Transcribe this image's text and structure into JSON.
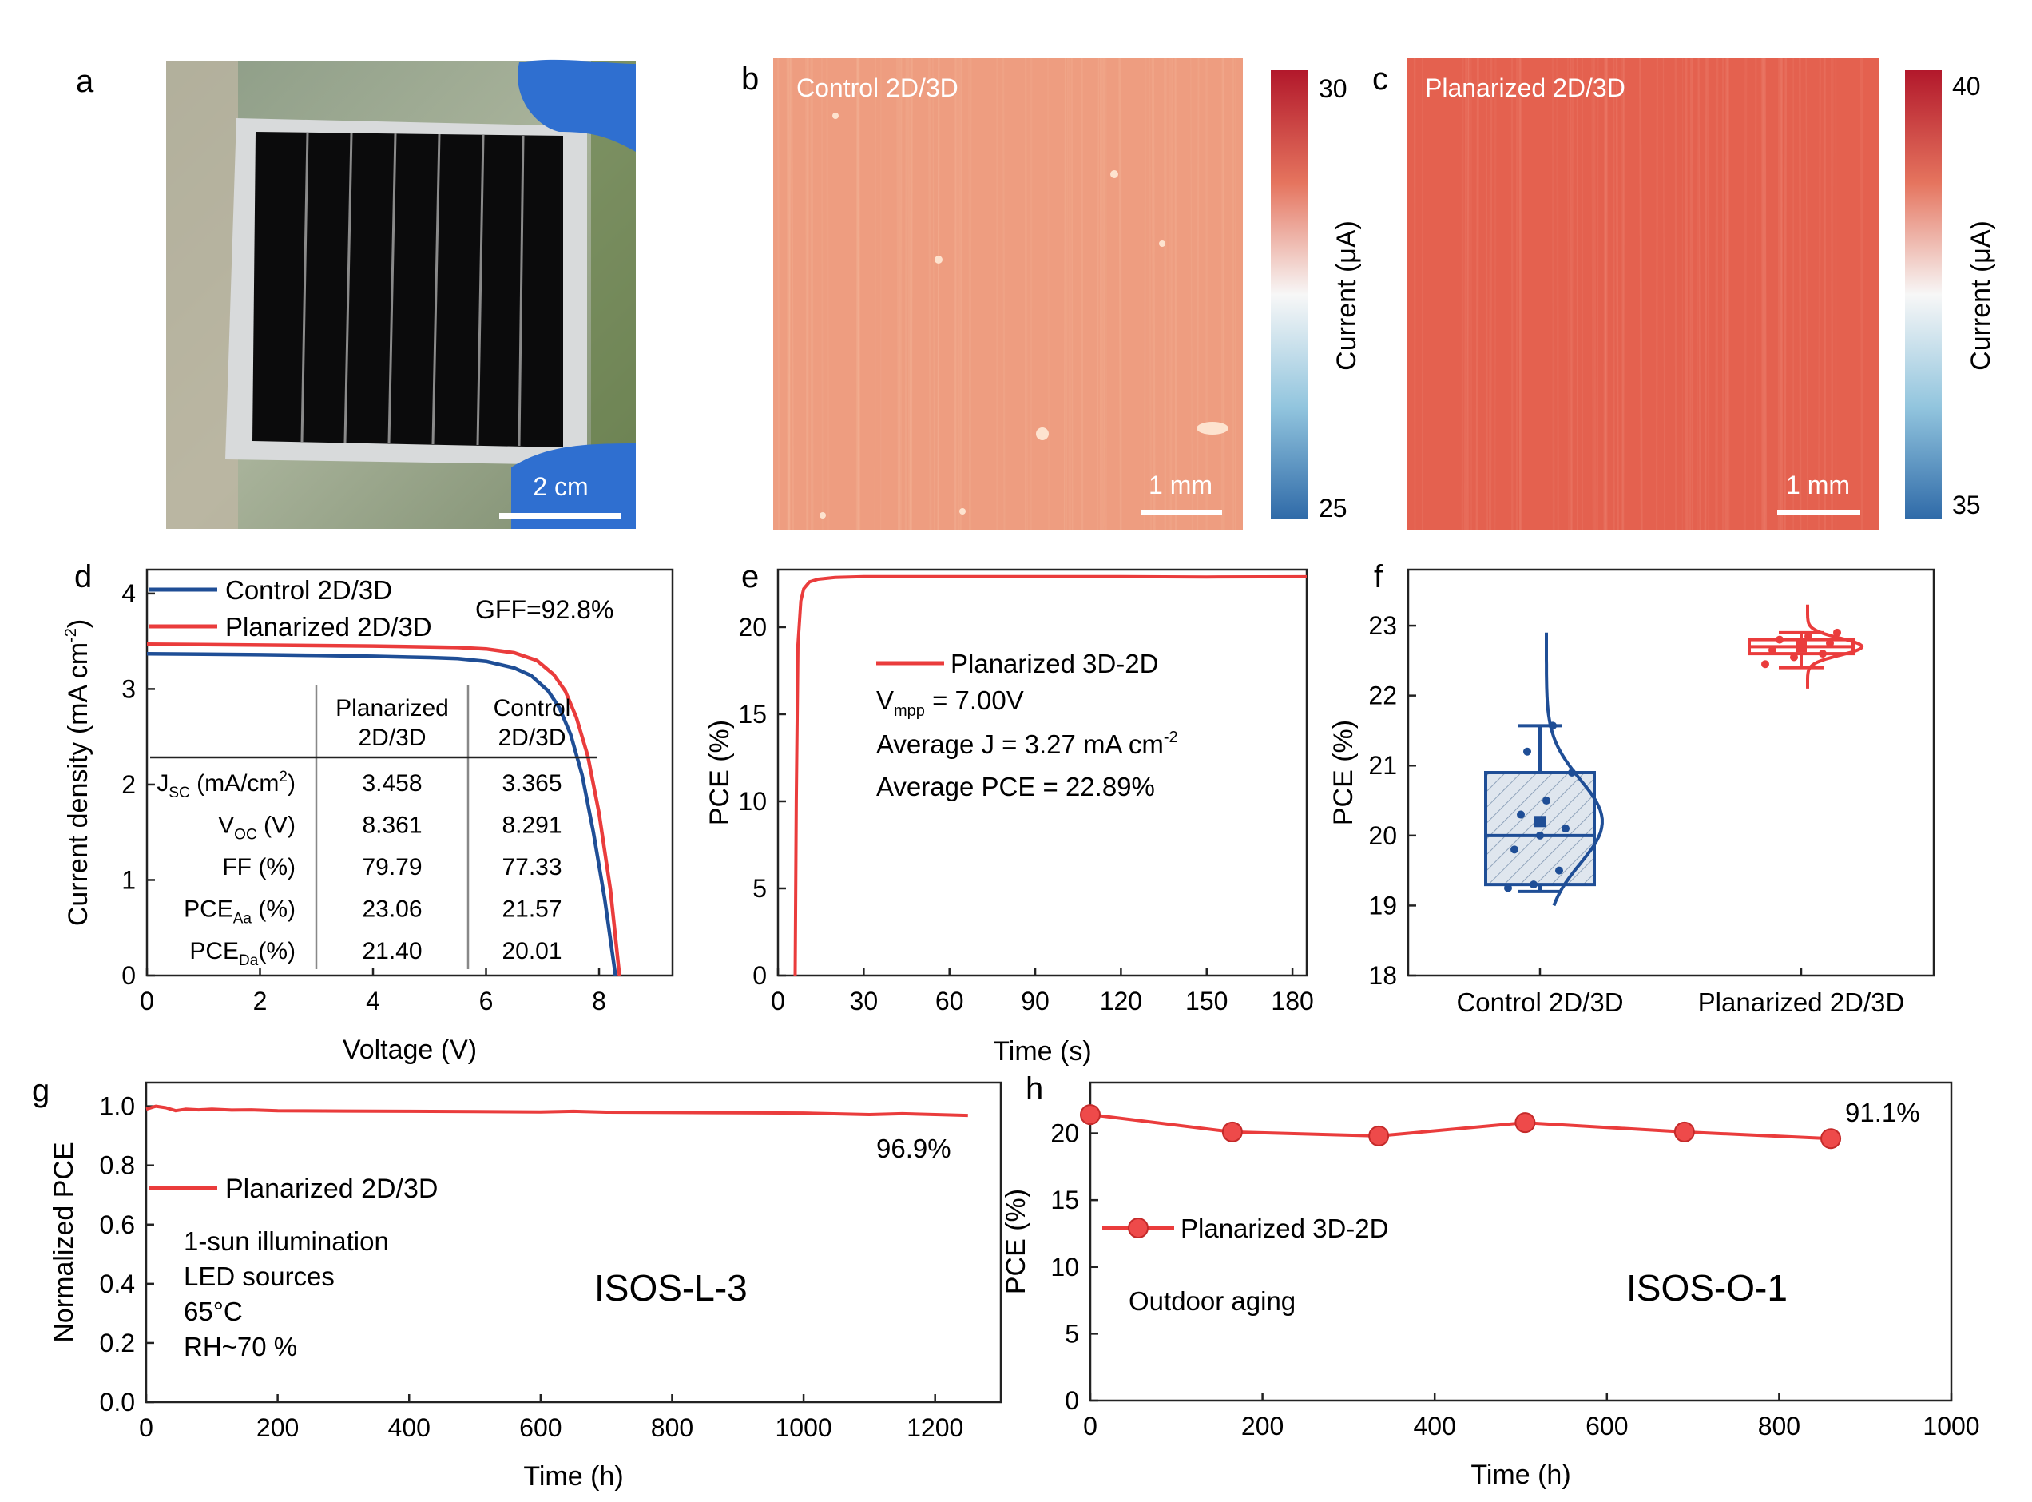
{
  "panels": {
    "a": {
      "letter": "a",
      "scale_bar": "2 cm"
    },
    "b": {
      "letter": "b",
      "title": "Control 2D/3D",
      "scale_bar": "1 mm",
      "colorbar": {
        "max": "30",
        "min": "25",
        "label": "Current (μA)"
      },
      "fill": "#ee9d80"
    },
    "c": {
      "letter": "c",
      "title": "Planarized 2D/3D",
      "scale_bar": "1 mm",
      "colorbar": {
        "max": "40",
        "min": "35",
        "label": "Current (μA)"
      },
      "fill": "#e4614f"
    },
    "d": {
      "letter": "d",
      "legend": [
        "Control 2D/3D",
        "Planarized 2D/3D"
      ],
      "gff": "GFF=92.8%",
      "table": {
        "headers": [
          [
            "Planarized",
            "2D/3D"
          ],
          [
            "Control",
            "2D/3D"
          ]
        ],
        "rows": [
          {
            "label": "J",
            "sub": "SC",
            "unit": " (mA/cm",
            "sup": "2",
            "tail": ")",
            "values": [
              "3.458",
              "3.365"
            ]
          },
          {
            "label": "V",
            "sub": "OC",
            "unit": " (V)",
            "sup": "",
            "tail": "",
            "values": [
              "8.361",
              "8.291"
            ]
          },
          {
            "label": "FF (%)",
            "sub": "",
            "unit": "",
            "sup": "",
            "tail": "",
            "values": [
              "79.79",
              "77.33"
            ]
          },
          {
            "label": "PCE",
            "sub": "Aa",
            "unit": " (%)",
            "sup": "",
            "tail": "",
            "values": [
              "23.06",
              "21.57"
            ]
          },
          {
            "label": "PCE",
            "sub": "Da",
            "unit": "(%)",
            "sup": "",
            "tail": "",
            "values": [
              "21.40",
              "20.01"
            ]
          }
        ]
      }
    },
    "e": {
      "letter": "e",
      "legend": "Planarized 3D-2D",
      "lines": [
        {
          "main": "V",
          "sub": "mpp",
          "rest": " = 7.00V",
          "sup": ""
        },
        {
          "main": "Average ",
          "sub": "",
          "rest": "J = 3.27 mA cm",
          "sup": "-2"
        },
        {
          "main": "Average PCE = 22.89%",
          "sub": "",
          "rest": "",
          "sup": ""
        }
      ]
    },
    "f": {
      "letter": "f"
    },
    "g": {
      "letter": "g",
      "legend": "Planarized 2D/3D",
      "notes": [
        "1-sun illumination",
        "LED sources",
        "65°C",
        "RH~70 %"
      ],
      "protocol": "ISOS-L-3",
      "end_label": "96.9%"
    },
    "h": {
      "letter": "h",
      "legend": "Planarized 3D-2D",
      "notes": [
        "Outdoor aging"
      ],
      "protocol": "ISOS-O-1",
      "end_label": "91.1%"
    }
  },
  "chart_data": [
    {
      "panel": "d",
      "type": "line",
      "xlabel": "Voltage (V)",
      "ylabel": "Current density (mA cm-2)",
      "xlim": [
        0,
        9.3
      ],
      "ylim": [
        0,
        4.25
      ],
      "xticks": [
        0,
        2,
        4,
        6,
        8
      ],
      "yticks": [
        0,
        1,
        2,
        3,
        4
      ],
      "series": [
        {
          "name": "Control 2D/3D",
          "color": "#1f4e96",
          "x": [
            0,
            1,
            2,
            3,
            4,
            5,
            5.5,
            6,
            6.5,
            6.8,
            7.1,
            7.3,
            7.5,
            7.7,
            7.9,
            8.1,
            8.291
          ],
          "y": [
            3.37,
            3.365,
            3.36,
            3.352,
            3.343,
            3.33,
            3.32,
            3.29,
            3.22,
            3.14,
            2.98,
            2.8,
            2.52,
            2.1,
            1.5,
            0.8,
            0
          ]
        },
        {
          "name": "Planarized 2D/3D",
          "color": "#ea3c3c",
          "x": [
            0,
            1,
            2,
            3,
            4,
            5,
            5.5,
            6,
            6.5,
            6.9,
            7.2,
            7.4,
            7.6,
            7.8,
            8.0,
            8.2,
            8.361
          ],
          "y": [
            3.47,
            3.465,
            3.46,
            3.455,
            3.45,
            3.44,
            3.435,
            3.42,
            3.38,
            3.3,
            3.15,
            2.98,
            2.7,
            2.3,
            1.7,
            0.9,
            0
          ]
        }
      ]
    },
    {
      "panel": "e",
      "type": "line",
      "xlabel": "Time (s)",
      "ylabel": "PCE (%)",
      "xlim": [
        0,
        185
      ],
      "ylim": [
        0,
        23.3
      ],
      "xticks": [
        0,
        30,
        60,
        90,
        120,
        150,
        180
      ],
      "yticks": [
        0,
        5,
        10,
        15,
        20
      ],
      "series": [
        {
          "name": "Planarized 3D-2D",
          "color": "#ea3c3c",
          "x": [
            6,
            6.4,
            7,
            8,
            9,
            11,
            14,
            20,
            30,
            60,
            90,
            120,
            150,
            185
          ],
          "y": [
            0,
            10,
            19,
            21.5,
            22.2,
            22.6,
            22.75,
            22.85,
            22.9,
            22.9,
            22.9,
            22.9,
            22.88,
            22.89
          ]
        }
      ]
    },
    {
      "panel": "f",
      "type": "box",
      "ylabel": "PCE (%)",
      "ylim": [
        18,
        23.8
      ],
      "yticks": [
        18,
        19,
        20,
        21,
        22,
        23
      ],
      "categories": [
        "Control 2D/3D",
        "Planarized 2D/3D"
      ],
      "series": [
        {
          "name": "Control 2D/3D",
          "color": "#1f4e96",
          "whisker_low": 19.2,
          "q1": 19.3,
          "median": 20.0,
          "q3": 20.9,
          "whisker_high": 21.57,
          "mean": 20.2,
          "points": [
            19.25,
            19.3,
            19.5,
            19.8,
            20.0,
            20.1,
            20.3,
            20.5,
            20.9,
            21.2,
            21.57
          ]
        },
        {
          "name": "Planarized 2D/3D",
          "color": "#ea3c3c",
          "whisker_low": 22.4,
          "q1": 22.6,
          "median": 22.7,
          "q3": 22.8,
          "whisker_high": 22.9,
          "mean": 22.7,
          "points": [
            22.45,
            22.55,
            22.6,
            22.65,
            22.7,
            22.75,
            22.8,
            22.85,
            22.9
          ]
        }
      ]
    },
    {
      "panel": "g",
      "type": "line",
      "xlabel": "Time (h)",
      "ylabel": "Normalized PCE",
      "xlim": [
        0,
        1300
      ],
      "ylim": [
        0,
        1.08
      ],
      "xticks": [
        0,
        200,
        400,
        600,
        800,
        1000,
        1200
      ],
      "yticks": [
        0.0,
        0.2,
        0.4,
        0.6,
        0.8,
        1.0
      ],
      "series": [
        {
          "name": "Planarized 2D/3D",
          "color": "#ea3c3c",
          "x": [
            0,
            15,
            30,
            45,
            60,
            80,
            100,
            130,
            160,
            200,
            300,
            400,
            500,
            600,
            650,
            700,
            800,
            900,
            1000,
            1100,
            1150,
            1250
          ],
          "y": [
            0.99,
            1.0,
            0.995,
            0.985,
            0.99,
            0.988,
            0.99,
            0.987,
            0.988,
            0.985,
            0.984,
            0.983,
            0.982,
            0.981,
            0.983,
            0.98,
            0.979,
            0.978,
            0.977,
            0.972,
            0.975,
            0.969
          ]
        }
      ]
    },
    {
      "panel": "h",
      "type": "line",
      "xlabel": "Time (h)",
      "ylabel": "PCE (%)",
      "xlim": [
        0,
        1000
      ],
      "ylim": [
        0,
        23.8
      ],
      "xticks": [
        0,
        200,
        400,
        600,
        800,
        1000
      ],
      "yticks": [
        0,
        5,
        10,
        15,
        20
      ],
      "series": [
        {
          "name": "Planarized 3D-2D",
          "color": "#ea3c3c",
          "x": [
            0,
            165,
            335,
            505,
            690,
            860
          ],
          "y": [
            21.4,
            20.1,
            19.8,
            20.8,
            20.1,
            19.6
          ]
        }
      ]
    }
  ]
}
